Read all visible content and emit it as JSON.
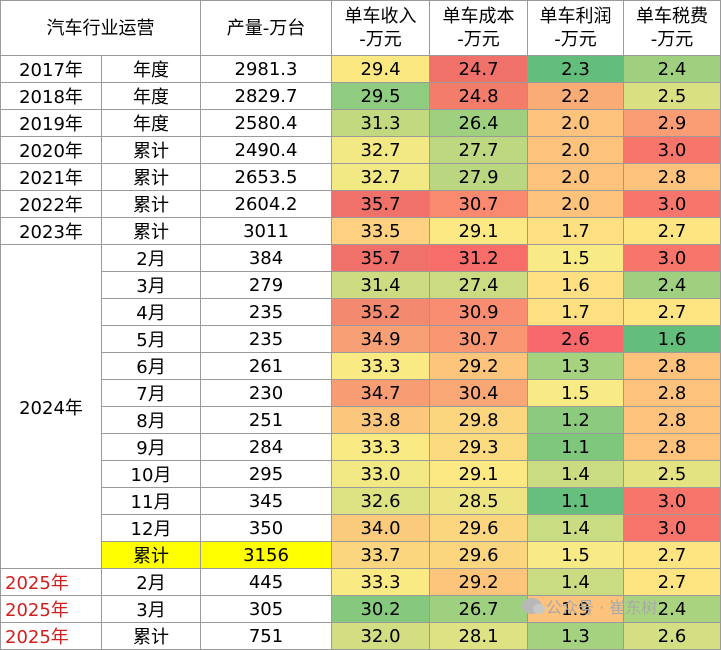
{
  "header": {
    "title": "汽车行业运营",
    "production": [
      "产量-万台"
    ],
    "revenue": [
      "单车收入",
      "-万元"
    ],
    "cost": [
      "单车成本",
      "-万元"
    ],
    "profit": [
      "单车利润",
      "-万元"
    ],
    "tax": [
      "单车税费",
      "-万元"
    ]
  },
  "rows": [
    {
      "year": "2017年",
      "period": "年度",
      "production": "2981.3",
      "revenue": "29.4",
      "cost": "24.7",
      "profit": "2.3",
      "tax": "2.4"
    },
    {
      "year": "2018年",
      "period": "年度",
      "production": "2829.7",
      "revenue": "29.5",
      "cost": "24.8",
      "profit": "2.2",
      "tax": "2.5"
    },
    {
      "year": "2019年",
      "period": "年度",
      "production": "2580.4",
      "revenue": "31.3",
      "cost": "26.4",
      "profit": "2.0",
      "tax": "2.9"
    },
    {
      "year": "2020年",
      "period": "累计",
      "production": "2490.4",
      "revenue": "32.7",
      "cost": "27.7",
      "profit": "2.0",
      "tax": "3.0"
    },
    {
      "year": "2021年",
      "period": "累计",
      "production": "2653.5",
      "revenue": "32.7",
      "cost": "27.9",
      "profit": "2.0",
      "tax": "2.8"
    },
    {
      "year": "2022年",
      "period": "累计",
      "production": "2604.2",
      "revenue": "35.7",
      "cost": "30.7",
      "profit": "2.0",
      "tax": "3.0"
    },
    {
      "year": "2023年",
      "period": "累计",
      "production": "3011",
      "revenue": "33.5",
      "cost": "29.1",
      "profit": "1.7",
      "tax": "2.7"
    },
    {
      "year": "2024年",
      "period": "2月",
      "production": "384",
      "revenue": "35.7",
      "cost": "31.2",
      "profit": "1.5",
      "tax": "3.0"
    },
    {
      "year": "",
      "period": "3月",
      "production": "279",
      "revenue": "31.4",
      "cost": "27.4",
      "profit": "1.6",
      "tax": "2.4"
    },
    {
      "year": "",
      "period": "4月",
      "production": "235",
      "revenue": "35.2",
      "cost": "30.9",
      "profit": "1.7",
      "tax": "2.7"
    },
    {
      "year": "",
      "period": "5月",
      "production": "235",
      "revenue": "34.9",
      "cost": "30.7",
      "profit": "2.6",
      "tax": "1.6"
    },
    {
      "year": "",
      "period": "6月",
      "production": "261",
      "revenue": "33.3",
      "cost": "29.2",
      "profit": "1.3",
      "tax": "2.8"
    },
    {
      "year": "",
      "period": "7月",
      "production": "230",
      "revenue": "34.7",
      "cost": "30.4",
      "profit": "1.5",
      "tax": "2.8"
    },
    {
      "year": "",
      "period": "8月",
      "production": "251",
      "revenue": "33.8",
      "cost": "29.8",
      "profit": "1.2",
      "tax": "2.8"
    },
    {
      "year": "",
      "period": "9月",
      "production": "284",
      "revenue": "33.3",
      "cost": "29.3",
      "profit": "1.1",
      "tax": "2.8"
    },
    {
      "year": "",
      "period": "10月",
      "production": "295",
      "revenue": "33.0",
      "cost": "29.1",
      "profit": "1.4",
      "tax": "2.5"
    },
    {
      "year": "",
      "period": "11月",
      "production": "345",
      "revenue": "32.6",
      "cost": "28.5",
      "profit": "1.1",
      "tax": "3.0"
    },
    {
      "year": "",
      "period": "12月",
      "production": "350",
      "revenue": "34.0",
      "cost": "29.6",
      "profit": "1.4",
      "tax": "3.0"
    },
    {
      "year": "",
      "period": "累计",
      "production": "3156",
      "revenue": "33.7",
      "cost": "29.6",
      "profit": "1.5",
      "tax": "2.7"
    },
    {
      "year": "2025年",
      "period": "2月",
      "production": "445",
      "revenue": "33.3",
      "cost": "29.2",
      "profit": "1.4",
      "tax": "2.7"
    },
    {
      "year": "2025年",
      "period": "3月",
      "production": "305",
      "revenue": "30.2",
      "cost": "26.7",
      "profit": "1.9",
      "tax": "2.4"
    },
    {
      "year": "2025年",
      "period": "累计",
      "production": "751",
      "revenue": "32.0",
      "cost": "28.1",
      "profit": "1.3",
      "tax": "2.6"
    }
  ],
  "colors": {
    "revenue": [
      "#fce880",
      "#8fcc7f",
      "#c3d97f",
      "#f2e884",
      "#f2e884",
      "#f0716a",
      "#fdd17f",
      "#f0716a",
      "#cddb81",
      "#f3896e",
      "#f7a075",
      "#f9ea84",
      "#f79c73",
      "#fbc77c",
      "#f9ea84",
      "#f2e884",
      "#dde283",
      "#facb7c",
      "#fcd57f",
      "#f9ea84",
      "#86c97e",
      "#d3dd82"
    ],
    "cost": [
      "#f0716a",
      "#f47c6b",
      "#9ed07f",
      "#bed781",
      "#bad680",
      "#f98a70",
      "#fde983",
      "#f66d69",
      "#cbdb81",
      "#f98d71",
      "#fa9773",
      "#fcc57b",
      "#f9a775",
      "#fcd57f",
      "#fcda80",
      "#fde983",
      "#ede584",
      "#fcd57f",
      "#fcd57f",
      "#fcc57b",
      "#9ed07f",
      "#dee283"
    ],
    "profit": [
      "#63be7b",
      "#f9ac76",
      "#fdc27b",
      "#fdc27b",
      "#fdc27b",
      "#fdc27b",
      "#fee081",
      "#f8ea84",
      "#fedf81",
      "#fee081",
      "#f8696b",
      "#a4d27f",
      "#f8ea84",
      "#8ccb7e",
      "#7ec77c",
      "#c9dc81",
      "#66bf7c",
      "#c9dc81",
      "#f8ea84",
      "#c9dc81",
      "#fdc27b",
      "#a4d27f"
    ],
    "tax": [
      "#9fd07f",
      "#d9e082",
      "#fa9c74",
      "#f8756c",
      "#fdc27b",
      "#f8756c",
      "#fee582",
      "#f8756c",
      "#9fd07f",
      "#fee582",
      "#63be7b",
      "#fdc27b",
      "#fdc27b",
      "#fdc27b",
      "#fdc27b",
      "#e3e382",
      "#f8756c",
      "#f8756c",
      "#fee582",
      "#fee582",
      "#a9d37f",
      "#d4de82"
    ]
  },
  "highlight_color": "#ffff00",
  "watermark": "公众号 · 崔东树"
}
